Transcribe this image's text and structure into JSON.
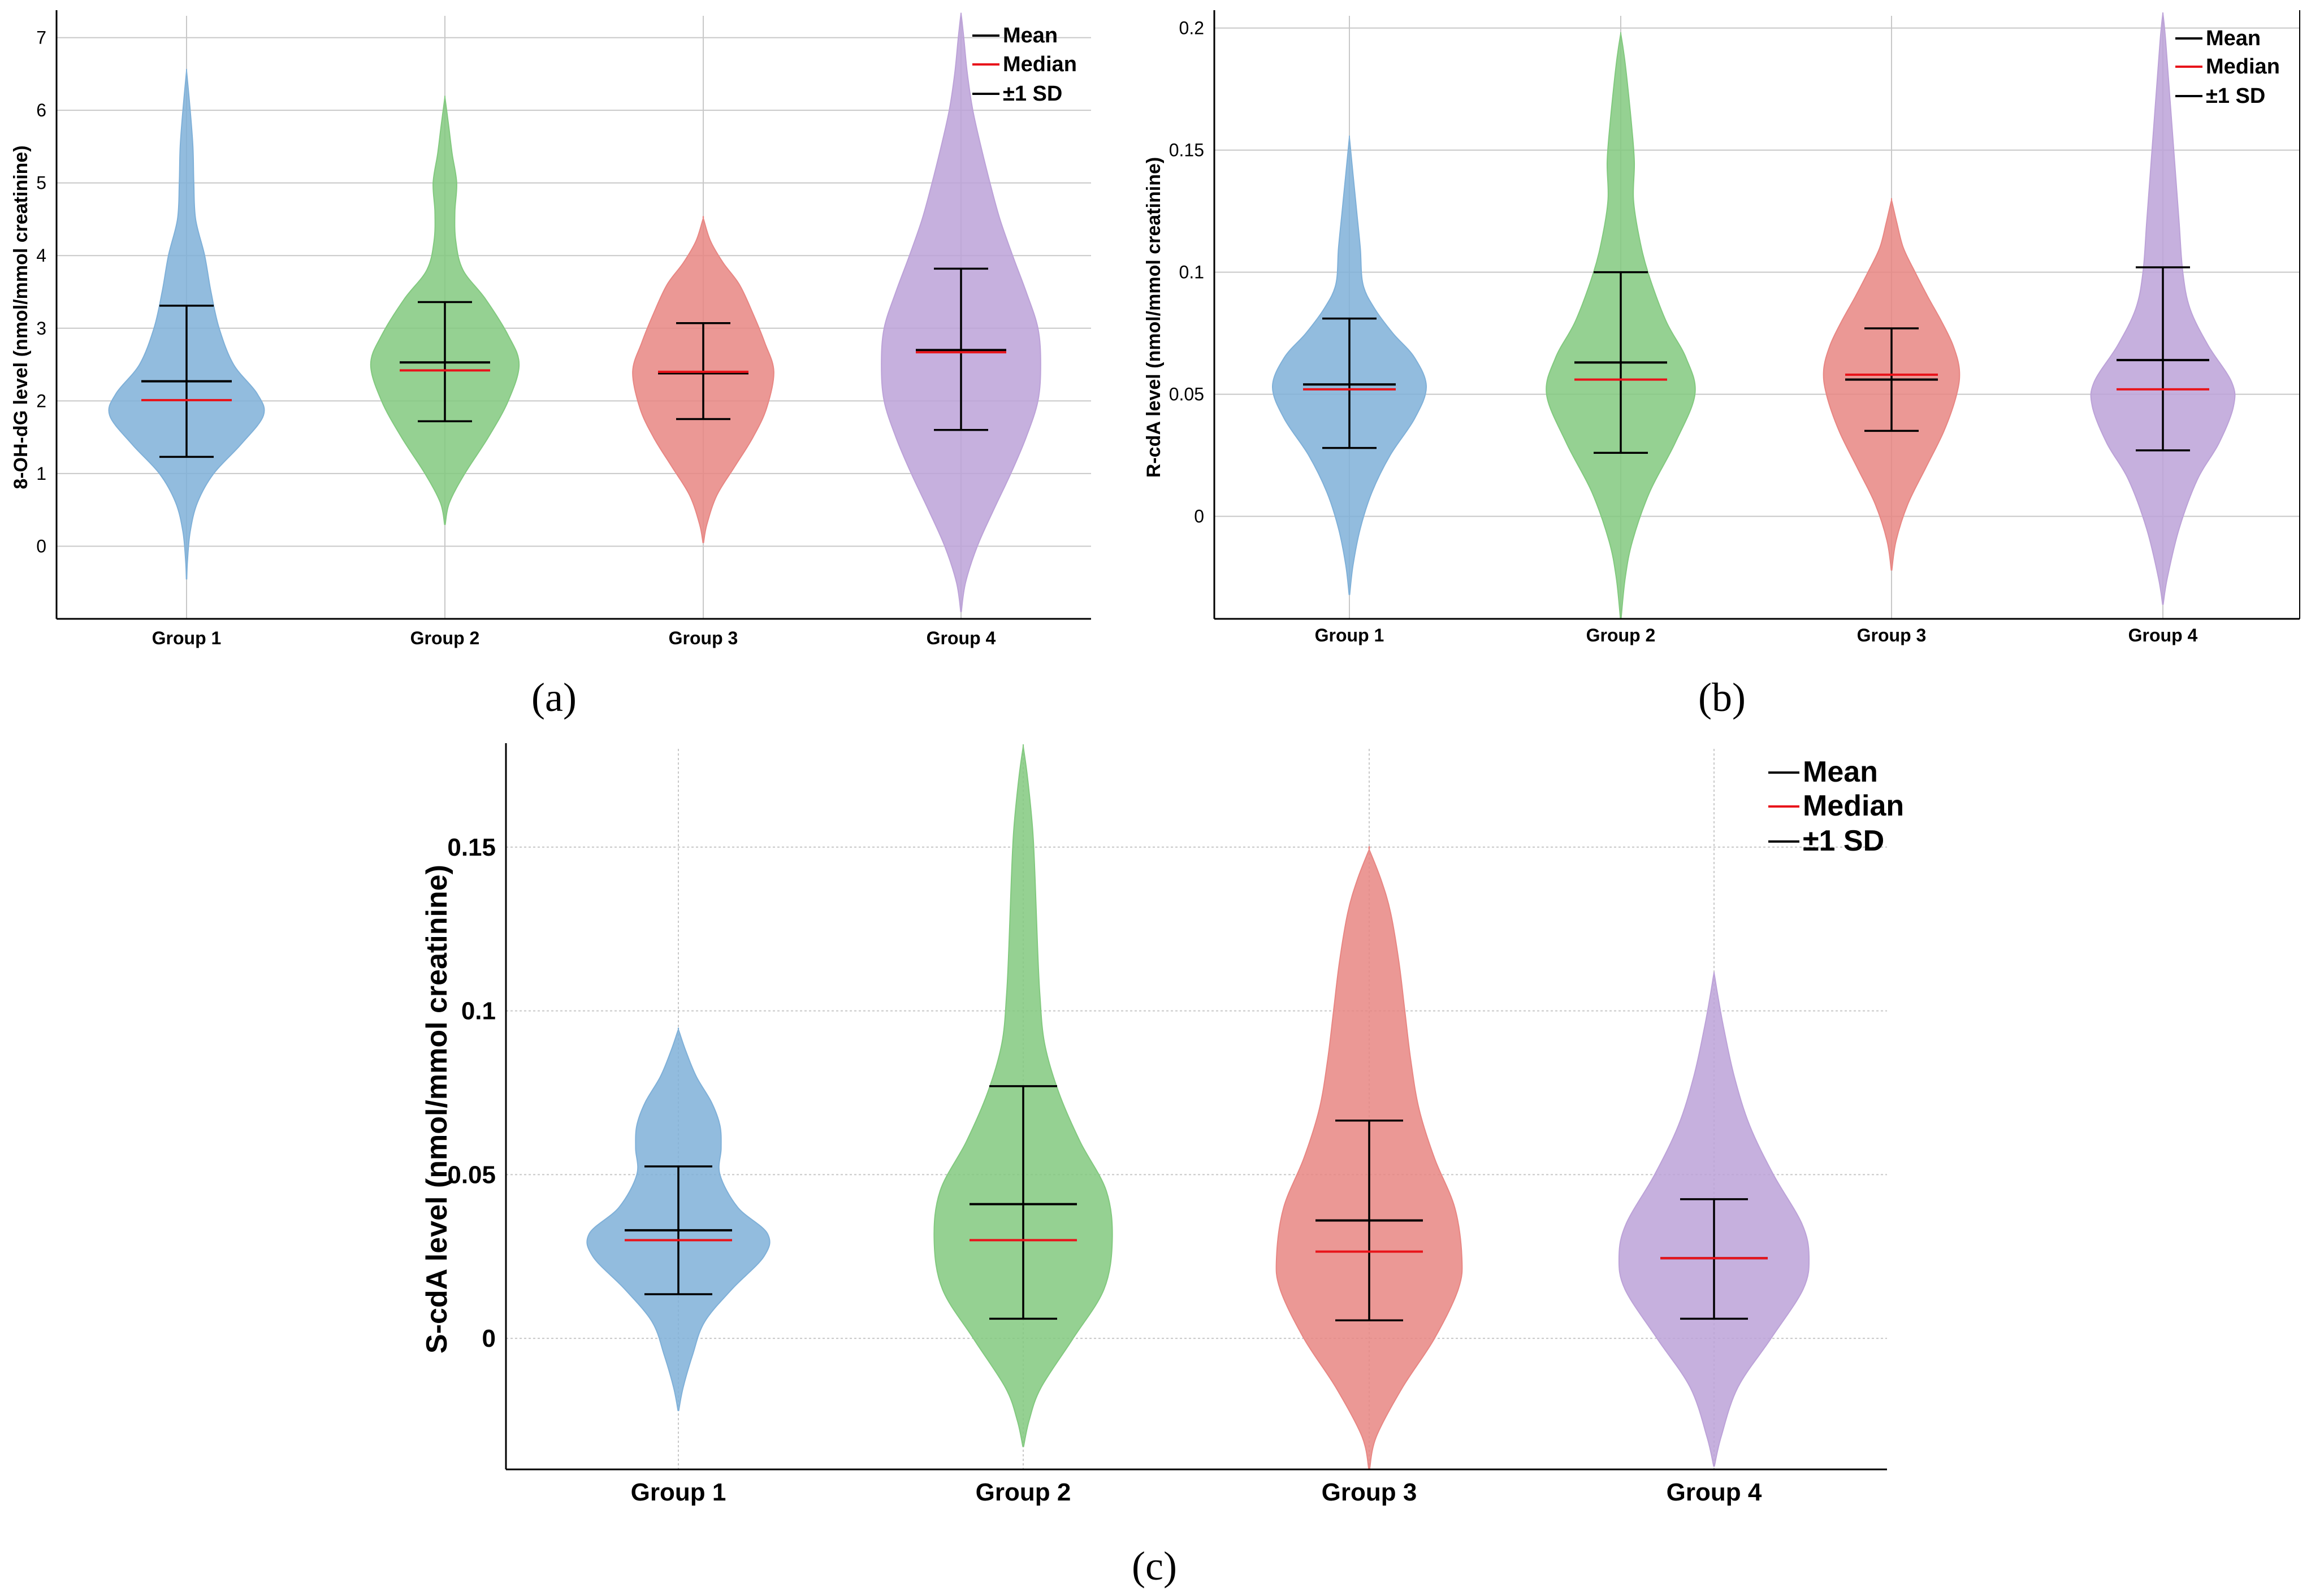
{
  "legend": {
    "mean": "Mean",
    "median": "Median",
    "sd": "±1 SD"
  },
  "chart_data": [
    {
      "panel": "(a)",
      "type": "violin",
      "ylabel": "8-OH-dG level (nmol/mmol creatinine)",
      "ylim": [
        -1,
        7.3
      ],
      "yticks": [
        0,
        1,
        2,
        3,
        4,
        5,
        6,
        7
      ],
      "ytick_labels": [
        "0",
        "1",
        "2",
        "3",
        "4",
        "5",
        "6",
        "7"
      ],
      "categories": [
        "Group 1",
        "Group 2",
        "Group 3",
        "Group 4"
      ],
      "colors": [
        "#7fb0d8",
        "#82c97f",
        "#e88683",
        "#bca2d8"
      ],
      "series": [
        {
          "name": "Group 1",
          "mean": 2.27,
          "median": 2.01,
          "sd_low": 1.23,
          "sd_high": 3.31,
          "min": -0.45,
          "max": 6.5,
          "profile": [
            [
              -0.45,
              0.002
            ],
            [
              -0.2,
              0.01
            ],
            [
              0.2,
              0.04
            ],
            [
              0.6,
              0.12
            ],
            [
              1.0,
              0.3
            ],
            [
              1.4,
              0.6
            ],
            [
              1.8,
              0.85
            ],
            [
              2.1,
              0.78
            ],
            [
              2.5,
              0.52
            ],
            [
              3.0,
              0.36
            ],
            [
              3.5,
              0.27
            ],
            [
              4.0,
              0.2
            ],
            [
              4.5,
              0.1
            ],
            [
              5.0,
              0.08
            ],
            [
              5.5,
              0.07
            ],
            [
              6.0,
              0.04
            ],
            [
              6.5,
              0.003
            ]
          ]
        },
        {
          "name": "Group 2",
          "mean": 2.53,
          "median": 2.42,
          "sd_low": 1.72,
          "sd_high": 3.36,
          "min": 0.3,
          "max": 6.15,
          "profile": [
            [
              0.3,
              0.003
            ],
            [
              0.6,
              0.05
            ],
            [
              1.0,
              0.22
            ],
            [
              1.5,
              0.48
            ],
            [
              2.0,
              0.7
            ],
            [
              2.5,
              0.82
            ],
            [
              2.9,
              0.7
            ],
            [
              3.4,
              0.45
            ],
            [
              3.8,
              0.2
            ],
            [
              4.2,
              0.12
            ],
            [
              4.6,
              0.11
            ],
            [
              5.0,
              0.13
            ],
            [
              5.4,
              0.08
            ],
            [
              5.8,
              0.04
            ],
            [
              6.15,
              0.003
            ]
          ]
        },
        {
          "name": "Group 3",
          "mean": 2.38,
          "median": 2.4,
          "sd_low": 1.75,
          "sd_high": 3.07,
          "min": 0.05,
          "max": 4.5,
          "profile": [
            [
              0.05,
              0.003
            ],
            [
              0.3,
              0.04
            ],
            [
              0.7,
              0.15
            ],
            [
              1.1,
              0.35
            ],
            [
              1.5,
              0.55
            ],
            [
              1.9,
              0.7
            ],
            [
              2.4,
              0.78
            ],
            [
              2.8,
              0.68
            ],
            [
              3.2,
              0.55
            ],
            [
              3.6,
              0.4
            ],
            [
              3.9,
              0.22
            ],
            [
              4.2,
              0.08
            ],
            [
              4.5,
              0.003
            ]
          ]
        },
        {
          "name": "Group 4",
          "mean": 2.7,
          "median": 2.67,
          "sd_low": 1.6,
          "sd_high": 3.82,
          "min": -0.9,
          "max": 7.3,
          "profile": [
            [
              -0.9,
              0.003
            ],
            [
              -0.5,
              0.05
            ],
            [
              0.0,
              0.18
            ],
            [
              0.5,
              0.36
            ],
            [
              1.0,
              0.55
            ],
            [
              1.5,
              0.72
            ],
            [
              2.0,
              0.85
            ],
            [
              2.5,
              0.88
            ],
            [
              3.0,
              0.85
            ],
            [
              3.5,
              0.72
            ],
            [
              4.0,
              0.57
            ],
            [
              4.5,
              0.43
            ],
            [
              5.0,
              0.32
            ],
            [
              5.5,
              0.22
            ],
            [
              6.0,
              0.13
            ],
            [
              6.5,
              0.07
            ],
            [
              7.0,
              0.03
            ],
            [
              7.3,
              0.003
            ]
          ]
        }
      ]
    },
    {
      "panel": "(b)",
      "type": "violin",
      "ylabel": "R-cdA level (nmol/mmol creatinine)",
      "ylim": [
        -0.042,
        0.205
      ],
      "yticks": [
        0,
        0.05,
        0.1,
        0.15,
        0.2
      ],
      "ytick_labels": [
        "0",
        "0.05",
        "0.1",
        "0.15",
        "0.2"
      ],
      "categories": [
        "Group 1",
        "Group 2",
        "Group 3",
        "Group 4"
      ],
      "colors": [
        "#7fb0d8",
        "#82c97f",
        "#e88683",
        "#bca2d8"
      ],
      "series": [
        {
          "name": "Group 1",
          "mean": 0.054,
          "median": 0.052,
          "sd_low": 0.028,
          "sd_high": 0.081,
          "min": -0.032,
          "max": 0.154,
          "profile": [
            [
              -0.032,
              0.003
            ],
            [
              -0.02,
              0.04
            ],
            [
              -0.005,
              0.12
            ],
            [
              0.01,
              0.25
            ],
            [
              0.025,
              0.45
            ],
            [
              0.04,
              0.72
            ],
            [
              0.053,
              0.85
            ],
            [
              0.065,
              0.72
            ],
            [
              0.075,
              0.48
            ],
            [
              0.085,
              0.28
            ],
            [
              0.095,
              0.15
            ],
            [
              0.11,
              0.12
            ],
            [
              0.125,
              0.08
            ],
            [
              0.14,
              0.04
            ],
            [
              0.154,
              0.003
            ]
          ]
        },
        {
          "name": "Group 2",
          "mean": 0.063,
          "median": 0.056,
          "sd_low": 0.026,
          "sd_high": 0.1,
          "min": -0.042,
          "max": 0.197,
          "profile": [
            [
              -0.042,
              0.003
            ],
            [
              -0.025,
              0.05
            ],
            [
              -0.01,
              0.13
            ],
            [
              0.01,
              0.32
            ],
            [
              0.03,
              0.6
            ],
            [
              0.05,
              0.82
            ],
            [
              0.065,
              0.72
            ],
            [
              0.08,
              0.5
            ],
            [
              0.1,
              0.3
            ],
            [
              0.115,
              0.2
            ],
            [
              0.13,
              0.14
            ],
            [
              0.145,
              0.15
            ],
            [
              0.16,
              0.12
            ],
            [
              0.175,
              0.08
            ],
            [
              0.188,
              0.04
            ],
            [
              0.197,
              0.003
            ]
          ]
        },
        {
          "name": "Group 3",
          "mean": 0.056,
          "median": 0.058,
          "sd_low": 0.035,
          "sd_high": 0.077,
          "min": -0.022,
          "max": 0.129,
          "profile": [
            [
              -0.022,
              0.003
            ],
            [
              -0.01,
              0.05
            ],
            [
              0.005,
              0.18
            ],
            [
              0.02,
              0.38
            ],
            [
              0.035,
              0.58
            ],
            [
              0.05,
              0.72
            ],
            [
              0.06,
              0.75
            ],
            [
              0.07,
              0.68
            ],
            [
              0.08,
              0.55
            ],
            [
              0.09,
              0.4
            ],
            [
              0.1,
              0.26
            ],
            [
              0.11,
              0.13
            ],
            [
              0.12,
              0.06
            ],
            [
              0.129,
              0.003
            ]
          ]
        },
        {
          "name": "Group 4",
          "mean": 0.064,
          "median": 0.052,
          "sd_low": 0.027,
          "sd_high": 0.102,
          "min": -0.036,
          "max": 0.205,
          "profile": [
            [
              -0.036,
              0.003
            ],
            [
              -0.025,
              0.05
            ],
            [
              -0.005,
              0.18
            ],
            [
              0.015,
              0.38
            ],
            [
              0.03,
              0.62
            ],
            [
              0.045,
              0.78
            ],
            [
              0.055,
              0.76
            ],
            [
              0.07,
              0.5
            ],
            [
              0.085,
              0.3
            ],
            [
              0.1,
              0.22
            ],
            [
              0.12,
              0.18
            ],
            [
              0.14,
              0.14
            ],
            [
              0.16,
              0.1
            ],
            [
              0.18,
              0.06
            ],
            [
              0.195,
              0.03
            ],
            [
              0.205,
              0.003
            ]
          ]
        }
      ]
    },
    {
      "panel": "(c)",
      "type": "violin",
      "ylabel": "S-cdA level (nmol/mmol creatinine)",
      "ylim": [
        -0.04,
        0.18
      ],
      "yticks": [
        0,
        0.05,
        0.1,
        0.15
      ],
      "ytick_labels": [
        "0",
        "0.05",
        "0.1",
        "0.15"
      ],
      "categories": [
        "Group 1",
        "Group 2",
        "Group 3",
        "Group 4"
      ],
      "colors": [
        "#7fb0d8",
        "#82c97f",
        "#e88683",
        "#bca2d8"
      ],
      "series": [
        {
          "name": "Group 1",
          "mean": 0.033,
          "median": 0.03,
          "sd_low": 0.0135,
          "sd_high": 0.0525,
          "min": -0.022,
          "max": 0.094,
          "profile": [
            [
              -0.022,
              0.003
            ],
            [
              -0.015,
              0.04
            ],
            [
              -0.005,
              0.12
            ],
            [
              0.005,
              0.22
            ],
            [
              0.015,
              0.45
            ],
            [
              0.025,
              0.72
            ],
            [
              0.032,
              0.75
            ],
            [
              0.04,
              0.5
            ],
            [
              0.05,
              0.35
            ],
            [
              0.058,
              0.36
            ],
            [
              0.065,
              0.35
            ],
            [
              0.072,
              0.28
            ],
            [
              0.08,
              0.15
            ],
            [
              0.088,
              0.06
            ],
            [
              0.094,
              0.003
            ]
          ]
        },
        {
          "name": "Group 2",
          "mean": 0.041,
          "median": 0.03,
          "sd_low": 0.006,
          "sd_high": 0.077,
          "min": -0.033,
          "max": 0.18,
          "profile": [
            [
              -0.033,
              0.003
            ],
            [
              -0.025,
              0.05
            ],
            [
              -0.015,
              0.15
            ],
            [
              0.0,
              0.42
            ],
            [
              0.015,
              0.68
            ],
            [
              0.03,
              0.75
            ],
            [
              0.045,
              0.7
            ],
            [
              0.06,
              0.48
            ],
            [
              0.075,
              0.3
            ],
            [
              0.09,
              0.18
            ],
            [
              0.105,
              0.14
            ],
            [
              0.12,
              0.12
            ],
            [
              0.14,
              0.1
            ],
            [
              0.155,
              0.08
            ],
            [
              0.17,
              0.04
            ],
            [
              0.18,
              0.003
            ]
          ]
        },
        {
          "name": "Group 3",
          "mean": 0.036,
          "median": 0.0265,
          "sd_low": 0.0055,
          "sd_high": 0.0665,
          "min": -0.04,
          "max": 0.149,
          "profile": [
            [
              -0.04,
              0.003
            ],
            [
              -0.03,
              0.06
            ],
            [
              -0.015,
              0.28
            ],
            [
              0.0,
              0.55
            ],
            [
              0.015,
              0.75
            ],
            [
              0.025,
              0.78
            ],
            [
              0.04,
              0.72
            ],
            [
              0.055,
              0.55
            ],
            [
              0.07,
              0.42
            ],
            [
              0.085,
              0.35
            ],
            [
              0.1,
              0.3
            ],
            [
              0.115,
              0.25
            ],
            [
              0.13,
              0.18
            ],
            [
              0.14,
              0.1
            ],
            [
              0.149,
              0.003
            ]
          ]
        },
        {
          "name": "Group 4",
          "mean": 0.0245,
          "median": 0.0245,
          "sd_low": 0.006,
          "sd_high": 0.0425,
          "min": -0.039,
          "max": 0.111,
          "profile": [
            [
              -0.039,
              0.003
            ],
            [
              -0.03,
              0.06
            ],
            [
              -0.015,
              0.2
            ],
            [
              0.0,
              0.48
            ],
            [
              0.015,
              0.75
            ],
            [
              0.025,
              0.8
            ],
            [
              0.035,
              0.74
            ],
            [
              0.05,
              0.5
            ],
            [
              0.065,
              0.3
            ],
            [
              0.08,
              0.17
            ],
            [
              0.095,
              0.08
            ],
            [
              0.105,
              0.03
            ],
            [
              0.111,
              0.003
            ]
          ]
        }
      ]
    }
  ]
}
